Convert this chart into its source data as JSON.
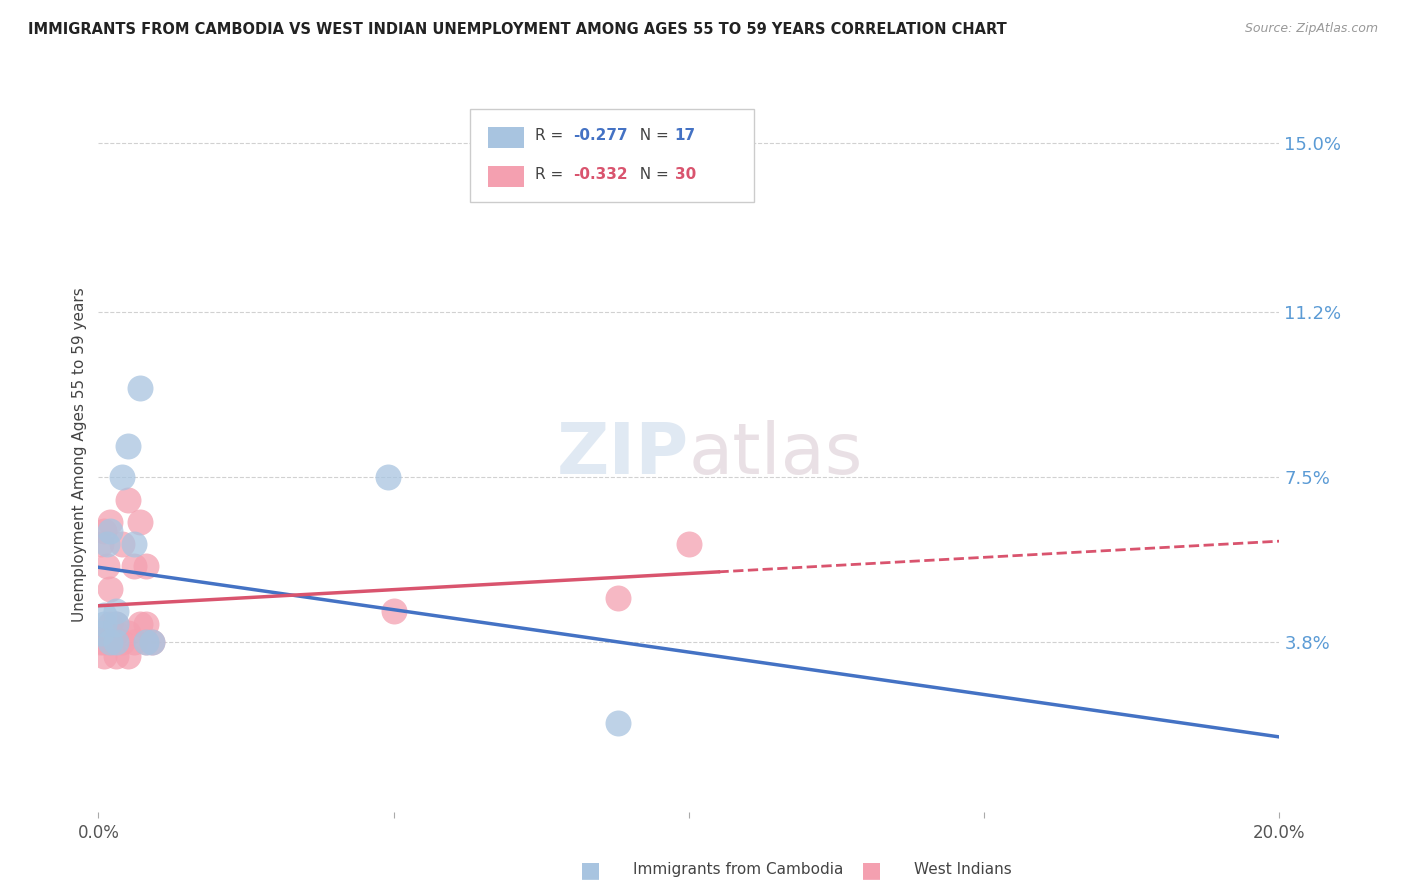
{
  "title": "IMMIGRANTS FROM CAMBODIA VS WEST INDIAN UNEMPLOYMENT AMONG AGES 55 TO 59 YEARS CORRELATION CHART",
  "source": "Source: ZipAtlas.com",
  "ylabel": "Unemployment Among Ages 55 to 59 years",
  "xlim": [
    0.0,
    0.2
  ],
  "ylim": [
    0.0,
    0.16
  ],
  "ytick_labels_right": [
    "15.0%",
    "11.2%",
    "7.5%",
    "3.8%"
  ],
  "ytick_values_right": [
    0.15,
    0.112,
    0.075,
    0.038
  ],
  "watermark_text": "ZIPatlas",
  "cambodia_color": "#a8c4e0",
  "west_indian_color": "#f4a0b0",
  "cambodia_line_color": "#4472c4",
  "west_indian_line_color": "#d9546e",
  "legend_R_cambodia": "-0.277",
  "legend_N_cambodia": "17",
  "legend_R_west_indian": "-0.332",
  "legend_N_west_indian": "30",
  "cambodia_x": [
    0.0005,
    0.001,
    0.001,
    0.0015,
    0.002,
    0.002,
    0.003,
    0.003,
    0.003,
    0.004,
    0.005,
    0.006,
    0.007,
    0.008,
    0.009,
    0.049,
    0.088
  ],
  "cambodia_y": [
    0.04,
    0.042,
    0.044,
    0.06,
    0.038,
    0.063,
    0.038,
    0.042,
    0.045,
    0.075,
    0.082,
    0.06,
    0.095,
    0.038,
    0.038,
    0.075,
    0.02
  ],
  "west_indian_x": [
    0.0003,
    0.0005,
    0.001,
    0.001,
    0.001,
    0.001,
    0.0015,
    0.002,
    0.002,
    0.002,
    0.002,
    0.003,
    0.003,
    0.003,
    0.004,
    0.004,
    0.005,
    0.005,
    0.005,
    0.006,
    0.006,
    0.007,
    0.007,
    0.008,
    0.008,
    0.008,
    0.009,
    0.05,
    0.088,
    0.1
  ],
  "west_indian_y": [
    0.038,
    0.06,
    0.035,
    0.038,
    0.04,
    0.063,
    0.055,
    0.038,
    0.042,
    0.05,
    0.065,
    0.035,
    0.04,
    0.042,
    0.038,
    0.06,
    0.035,
    0.04,
    0.07,
    0.038,
    0.055,
    0.042,
    0.065,
    0.038,
    0.042,
    0.055,
    0.038,
    0.045,
    0.048,
    0.06
  ],
  "background_color": "#ffffff",
  "grid_color": "#cccccc",
  "title_color": "#222222",
  "right_label_color": "#5b9bd5",
  "bottom_legend_cambodia": "Immigrants from Cambodia",
  "bottom_legend_wi": "West Indians",
  "solid_line_end_wi": 0.105,
  "dashed_line_start_wi": 0.105
}
